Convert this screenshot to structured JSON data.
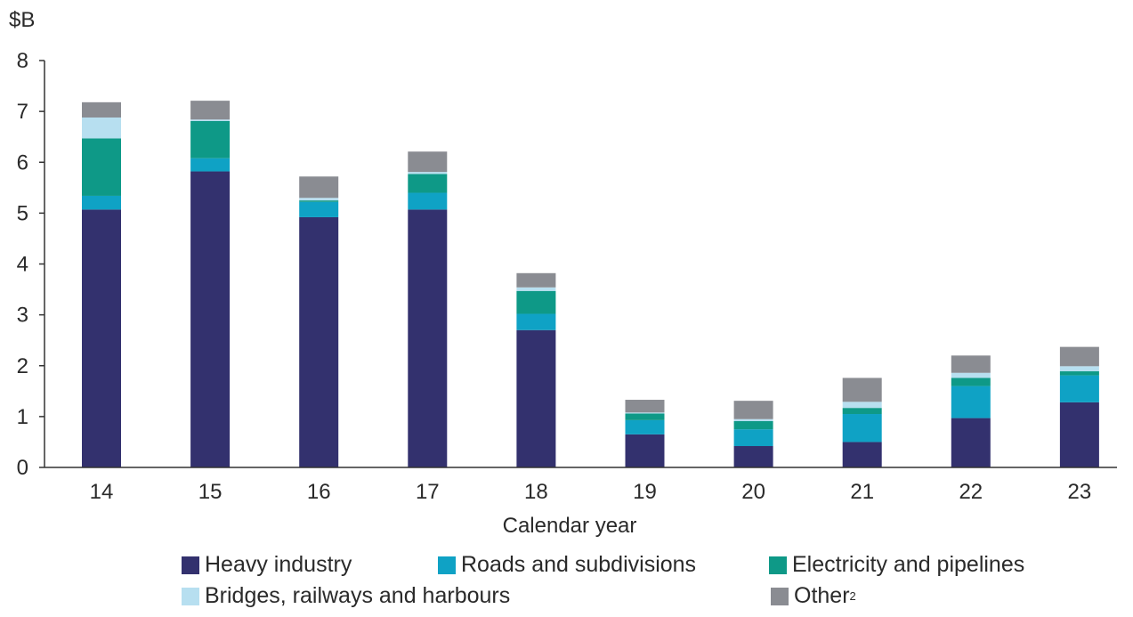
{
  "chart_data": {
    "type": "bar",
    "stacked": true,
    "unit_label": "$B",
    "xlabel": "Calendar year",
    "categories": [
      "14",
      "15",
      "16",
      "17",
      "18",
      "19",
      "20",
      "21",
      "22",
      "23"
    ],
    "ylim": [
      0,
      8
    ],
    "yticks": [
      "0",
      "1",
      "2",
      "3",
      "4",
      "5",
      "6",
      "7",
      "8"
    ],
    "series": [
      {
        "name": "Heavy industry",
        "color": "#33316e",
        "values": [
          5.07,
          5.82,
          4.92,
          5.07,
          2.7,
          0.65,
          0.42,
          0.5,
          0.97,
          1.28
        ]
      },
      {
        "name": "Roads and subdivisions",
        "color": "#0fa2c5",
        "values": [
          0.27,
          0.26,
          0.3,
          0.33,
          0.32,
          0.28,
          0.33,
          0.55,
          0.63,
          0.53
        ]
      },
      {
        "name": "Electricity and pipelines",
        "color": "#0e9987",
        "values": [
          1.13,
          0.73,
          0.03,
          0.37,
          0.45,
          0.13,
          0.16,
          0.12,
          0.16,
          0.08
        ]
      },
      {
        "name": "Bridges, railways and harbours",
        "color": "#b7dff0",
        "values": [
          0.41,
          0.03,
          0.05,
          0.04,
          0.07,
          0.02,
          0.04,
          0.12,
          0.1,
          0.1
        ]
      },
      {
        "name": "Other",
        "legend_sup": "2",
        "color": "#8a8c92",
        "values": [
          0.3,
          0.37,
          0.42,
          0.4,
          0.28,
          0.25,
          0.36,
          0.47,
          0.34,
          0.38
        ]
      }
    ]
  },
  "legend": {
    "heavy_industry": "Heavy industry",
    "roads": "Roads and subdivisions",
    "electricity": "Electricity and pipelines",
    "bridges": "Bridges, railways and harbours",
    "other": "Other",
    "other_sup": "2"
  }
}
